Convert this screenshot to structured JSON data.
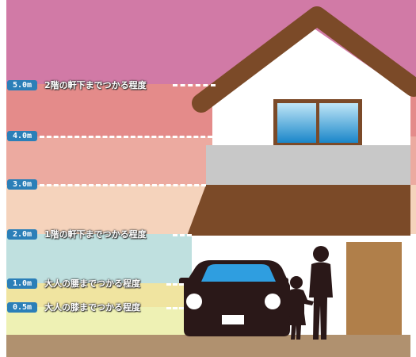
{
  "colors": {
    "band_5m": "#d17aa6",
    "band_4m": "#e48b8a",
    "band_3m": "#ecaaa0",
    "band_2m": "#f5d3bc",
    "band_1m": "#bfe0df",
    "band_05m": "#f0e4a0",
    "band_0m": "#eef1b4",
    "ground": "#b0916f",
    "roof": "#7b4a28",
    "house_wall": "#ffffff",
    "balcony": "#c8c8c8",
    "window_frame": "#7b4a28",
    "window_glass": "#1f8fd0",
    "door": "#b07f4a",
    "car": "#2a1818",
    "people": "#2a1818",
    "badge": "#2b7fb8"
  },
  "levels": [
    {
      "badge": "5.0m",
      "label": "2階の軒下までつかる程度"
    },
    {
      "badge": "4.0m",
      "label": ""
    },
    {
      "badge": "3.0m",
      "label": ""
    },
    {
      "badge": "2.0m",
      "label": "1階の軒下までつかる程度"
    },
    {
      "badge": "1.0m",
      "label": "大人の腰までつかる程度"
    },
    {
      "badge": "0.5m",
      "label": "大人の膝までつかる程度"
    }
  ],
  "icons": {
    "house": "house-icon",
    "car": "car-icon",
    "adult": "adult-figure-icon",
    "child": "child-figure-icon"
  }
}
